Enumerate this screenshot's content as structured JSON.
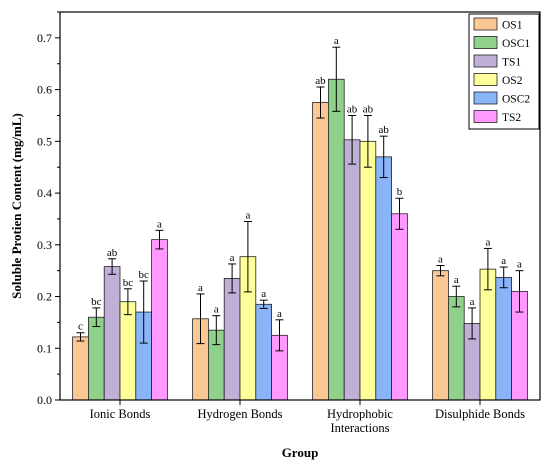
{
  "chart_data": {
    "type": "bar",
    "title": "",
    "xlabel": "Group",
    "ylabel": "Soluble Protien Content (mg/mL)",
    "ylim": [
      0.0,
      0.75
    ],
    "yticks": [
      "0.0",
      "0.1",
      "0.2",
      "0.3",
      "0.4",
      "0.5",
      "0.6",
      "0.7"
    ],
    "categories": [
      [
        "Ionic Bonds"
      ],
      [
        "Hydrogen Bonds"
      ],
      [
        "Hydrophobic",
        "Interactions"
      ],
      [
        "Disulphide Bonds"
      ]
    ],
    "legend_position": "top-right",
    "series": [
      {
        "name": "OS1",
        "color": "#FBC893",
        "values": [
          0.122,
          0.157,
          0.575,
          0.25
        ],
        "errors": [
          0.008,
          0.048,
          0.03,
          0.01
        ],
        "labels": [
          "c",
          "a",
          "ab",
          "a"
        ]
      },
      {
        "name": "OSC1",
        "color": "#8FD18B",
        "values": [
          0.16,
          0.135,
          0.62,
          0.2
        ],
        "errors": [
          0.018,
          0.028,
          0.062,
          0.02
        ],
        "labels": [
          "bc",
          "a",
          "a",
          "a"
        ]
      },
      {
        "name": "TS1",
        "color": "#C0B0D8",
        "values": [
          0.258,
          0.235,
          0.503,
          0.148
        ],
        "errors": [
          0.015,
          0.028,
          0.047,
          0.03
        ],
        "labels": [
          "ab",
          "a",
          "ab",
          "a"
        ]
      },
      {
        "name": "OS2",
        "color": "#FFFF99",
        "values": [
          0.19,
          0.277,
          0.5,
          0.253
        ],
        "errors": [
          0.025,
          0.068,
          0.05,
          0.04
        ],
        "labels": [
          "bc",
          "a",
          "ab",
          "a"
        ]
      },
      {
        "name": "OSC2",
        "color": "#8AB4F8",
        "values": [
          0.17,
          0.185,
          0.47,
          0.237
        ],
        "errors": [
          0.06,
          0.008,
          0.04,
          0.02
        ],
        "labels": [
          "bc",
          "a",
          "ab",
          "a"
        ]
      },
      {
        "name": "TS2",
        "color": "#FF99FF",
        "values": [
          0.31,
          0.125,
          0.36,
          0.21
        ],
        "errors": [
          0.018,
          0.03,
          0.03,
          0.04
        ],
        "labels": [
          "a",
          "a",
          "b",
          "a"
        ]
      }
    ]
  }
}
